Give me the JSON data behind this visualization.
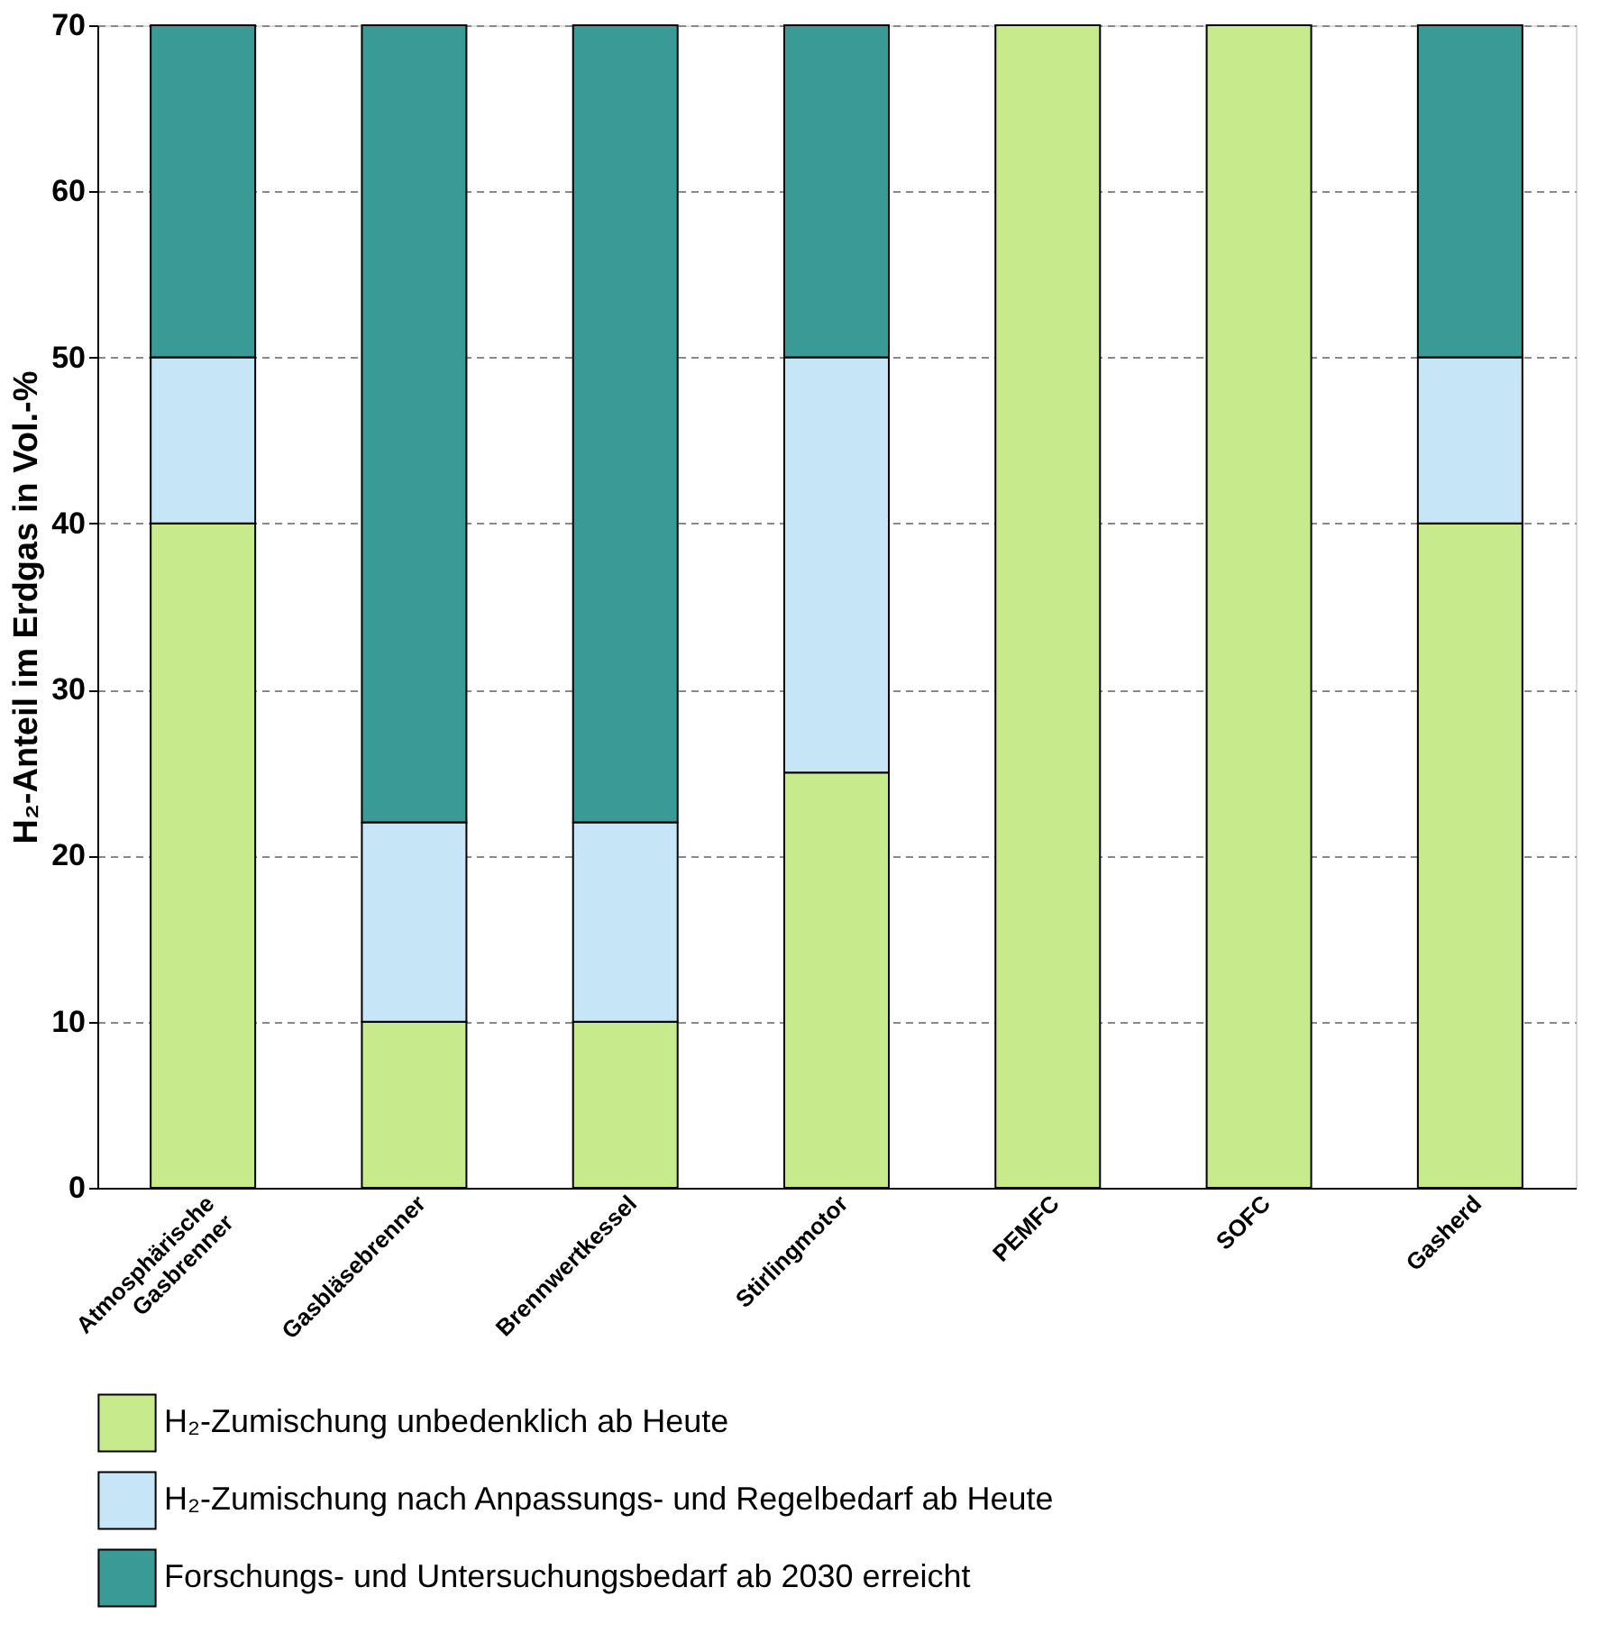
{
  "chart_data": {
    "type": "bar",
    "stacked": true,
    "ylabel": "H₂-Anteil im Erdgas in Vol.-%",
    "categories": [
      "Atmosphärische\nGasbrenner",
      "Gasbläsebrenner",
      "Brennwertkessel",
      "Stirlingmotor",
      "PEMFC",
      "SOFC",
      "Gasherd"
    ],
    "series": [
      {
        "name": "H₂-Zumischung unbedenklich ab Heute",
        "color": "#c6ea8c",
        "values": [
          40,
          10,
          10,
          25,
          70,
          70,
          40
        ]
      },
      {
        "name": "H₂-Zumischung nach Anpassungs- und Regelbedarf ab Heute",
        "color": "#c6e6f8",
        "values": [
          10,
          12,
          12,
          25,
          null,
          null,
          10
        ]
      },
      {
        "name": "Forschungs- und Untersuchungsbedarf ab 2030 erreicht",
        "color": "#3a9a96",
        "values": [
          20,
          48,
          48,
          20,
          null,
          null,
          20
        ]
      }
    ],
    "ylim": [
      0,
      70
    ],
    "yticks": [
      0,
      10,
      20,
      30,
      40,
      50,
      60,
      70
    ],
    "grid": "y",
    "legend": "bottom"
  }
}
